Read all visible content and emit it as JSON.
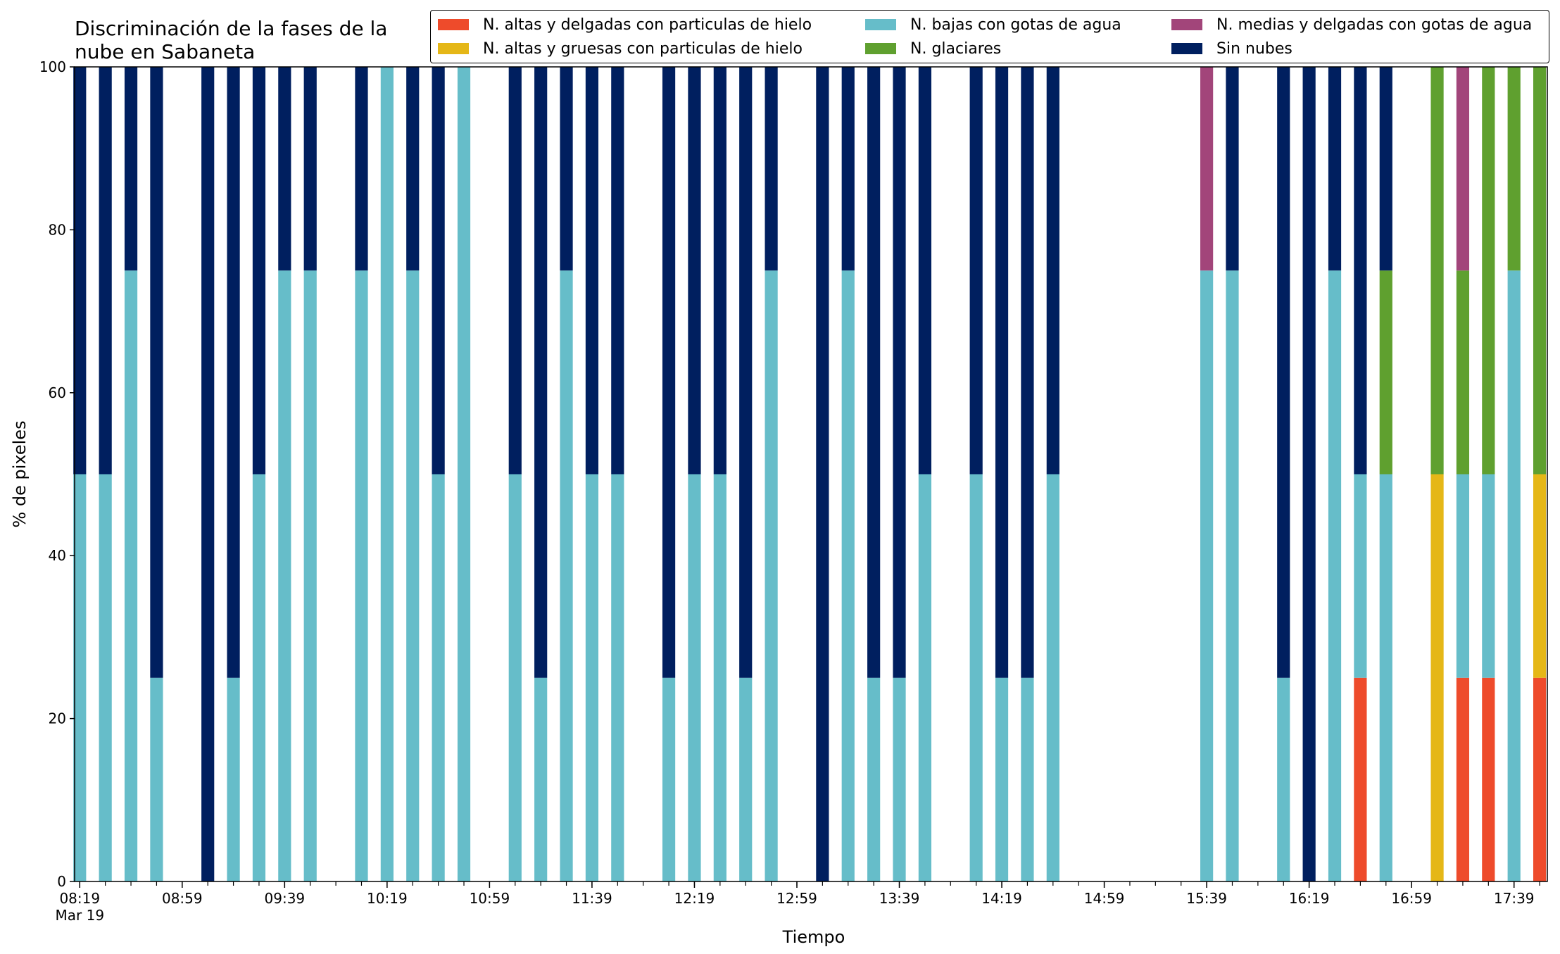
{
  "chart_data": {
    "type": "bar",
    "stacked": true,
    "title": "Discriminación de la fases de la\nnube en Sabaneta",
    "xlabel": "Tiempo",
    "ylabel": "% de pixeles",
    "ylim": [
      0,
      100
    ],
    "yticks": [
      0,
      20,
      40,
      60,
      80,
      100
    ],
    "xlim_minutes": [
      497,
      1072
    ],
    "slot_minutes": 10,
    "bar_width_minutes": 5,
    "major_ticks": [
      {
        "time": "08:19",
        "sub": "Mar 19"
      },
      {
        "time": "08:59",
        "sub": ""
      },
      {
        "time": "09:39",
        "sub": ""
      },
      {
        "time": "10:19",
        "sub": ""
      },
      {
        "time": "10:59",
        "sub": ""
      },
      {
        "time": "11:39",
        "sub": ""
      },
      {
        "time": "12:19",
        "sub": ""
      },
      {
        "time": "12:59",
        "sub": ""
      },
      {
        "time": "13:39",
        "sub": ""
      },
      {
        "time": "14:19",
        "sub": ""
      },
      {
        "time": "14:59",
        "sub": ""
      },
      {
        "time": "15:39",
        "sub": ""
      },
      {
        "time": "16:19",
        "sub": ""
      },
      {
        "time": "16:59",
        "sub": ""
      },
      {
        "time": "17:39",
        "sub": ""
      }
    ],
    "legend_position": "top-right",
    "series": [
      {
        "name": "N. altas y delgadas con particulas de hielo",
        "color": "#ee4b2b"
      },
      {
        "name": "N. altas y gruesas con particulas de hielo",
        "color": "#e5b717"
      },
      {
        "name": "N. bajas con gotas de agua",
        "color": "#66bdc9"
      },
      {
        "name": "N. glaciares",
        "color": "#5fa02f"
      },
      {
        "name": "N. medias y delgadas con gotas de agua",
        "color": "#a2457a"
      },
      {
        "name": "Sin nubes",
        "color": "#001f5f"
      }
    ],
    "bars": [
      {
        "time": "08:19",
        "values": [
          0,
          0,
          50,
          0,
          0,
          50
        ]
      },
      {
        "time": "08:29",
        "values": [
          0,
          0,
          50,
          0,
          0,
          50
        ]
      },
      {
        "time": "08:39",
        "values": [
          0,
          0,
          75,
          0,
          0,
          25
        ]
      },
      {
        "time": "08:49",
        "values": [
          0,
          0,
          25,
          0,
          0,
          75
        ]
      },
      {
        "time": "09:09",
        "values": [
          0,
          0,
          0,
          0,
          0,
          100
        ]
      },
      {
        "time": "09:19",
        "values": [
          0,
          0,
          25,
          0,
          0,
          75
        ]
      },
      {
        "time": "09:29",
        "values": [
          0,
          0,
          50,
          0,
          0,
          50
        ]
      },
      {
        "time": "09:39",
        "values": [
          0,
          0,
          75,
          0,
          0,
          25
        ]
      },
      {
        "time": "09:49",
        "values": [
          0,
          0,
          75,
          0,
          0,
          25
        ]
      },
      {
        "time": "10:09",
        "values": [
          0,
          0,
          75,
          0,
          0,
          25
        ]
      },
      {
        "time": "10:19",
        "values": [
          0,
          0,
          100,
          0,
          0,
          0
        ]
      },
      {
        "time": "10:29",
        "values": [
          0,
          0,
          75,
          0,
          0,
          25
        ]
      },
      {
        "time": "10:39",
        "values": [
          0,
          0,
          50,
          0,
          0,
          50
        ]
      },
      {
        "time": "10:49",
        "values": [
          0,
          0,
          100,
          0,
          0,
          0
        ]
      },
      {
        "time": "11:09",
        "values": [
          0,
          0,
          50,
          0,
          0,
          50
        ]
      },
      {
        "time": "11:19",
        "values": [
          0,
          0,
          25,
          0,
          0,
          75
        ]
      },
      {
        "time": "11:29",
        "values": [
          0,
          0,
          75,
          0,
          0,
          25
        ]
      },
      {
        "time": "11:39",
        "values": [
          0,
          0,
          50,
          0,
          0,
          50
        ]
      },
      {
        "time": "11:49",
        "values": [
          0,
          0,
          50,
          0,
          0,
          50
        ]
      },
      {
        "time": "12:09",
        "values": [
          0,
          0,
          25,
          0,
          0,
          75
        ]
      },
      {
        "time": "12:19",
        "values": [
          0,
          0,
          50,
          0,
          0,
          50
        ]
      },
      {
        "time": "12:29",
        "values": [
          0,
          0,
          50,
          0,
          0,
          50
        ]
      },
      {
        "time": "12:39",
        "values": [
          0,
          0,
          25,
          0,
          0,
          75
        ]
      },
      {
        "time": "12:49",
        "values": [
          0,
          0,
          75,
          0,
          0,
          25
        ]
      },
      {
        "time": "13:09",
        "values": [
          0,
          0,
          0,
          0,
          0,
          100
        ]
      },
      {
        "time": "13:19",
        "values": [
          0,
          0,
          75,
          0,
          0,
          25
        ]
      },
      {
        "time": "13:29",
        "values": [
          0,
          0,
          25,
          0,
          0,
          75
        ]
      },
      {
        "time": "13:39",
        "values": [
          0,
          0,
          25,
          0,
          0,
          75
        ]
      },
      {
        "time": "13:49",
        "values": [
          0,
          0,
          50,
          0,
          0,
          50
        ]
      },
      {
        "time": "14:09",
        "values": [
          0,
          0,
          50,
          0,
          0,
          50
        ]
      },
      {
        "time": "14:19",
        "values": [
          0,
          0,
          25,
          0,
          0,
          75
        ]
      },
      {
        "time": "14:29",
        "values": [
          0,
          0,
          25,
          0,
          0,
          75
        ]
      },
      {
        "time": "14:39",
        "values": [
          0,
          0,
          50,
          0,
          0,
          50
        ]
      },
      {
        "time": "15:39",
        "values": [
          0,
          0,
          75,
          0,
          25,
          0
        ]
      },
      {
        "time": "15:49",
        "values": [
          0,
          0,
          75,
          0,
          0,
          25
        ]
      },
      {
        "time": "16:09",
        "values": [
          0,
          0,
          25,
          0,
          0,
          75
        ]
      },
      {
        "time": "16:19",
        "values": [
          0,
          0,
          0,
          0,
          0,
          100
        ]
      },
      {
        "time": "16:29",
        "values": [
          0,
          0,
          75,
          0,
          0,
          25
        ]
      },
      {
        "time": "16:39",
        "values": [
          25,
          0,
          25,
          0,
          0,
          50
        ]
      },
      {
        "time": "16:49",
        "values": [
          0,
          0,
          50,
          25,
          0,
          25
        ]
      },
      {
        "time": "17:09",
        "values": [
          0,
          50,
          0,
          50,
          0,
          0
        ]
      },
      {
        "time": "17:19",
        "values": [
          25,
          0,
          25,
          25,
          25,
          0
        ]
      },
      {
        "time": "17:29",
        "values": [
          25,
          0,
          25,
          50,
          0,
          0
        ]
      },
      {
        "time": "17:39",
        "values": [
          0,
          0,
          75,
          25,
          0,
          0
        ]
      },
      {
        "time": "17:49",
        "values": [
          25,
          25,
          0,
          50,
          0,
          0
        ]
      }
    ]
  }
}
